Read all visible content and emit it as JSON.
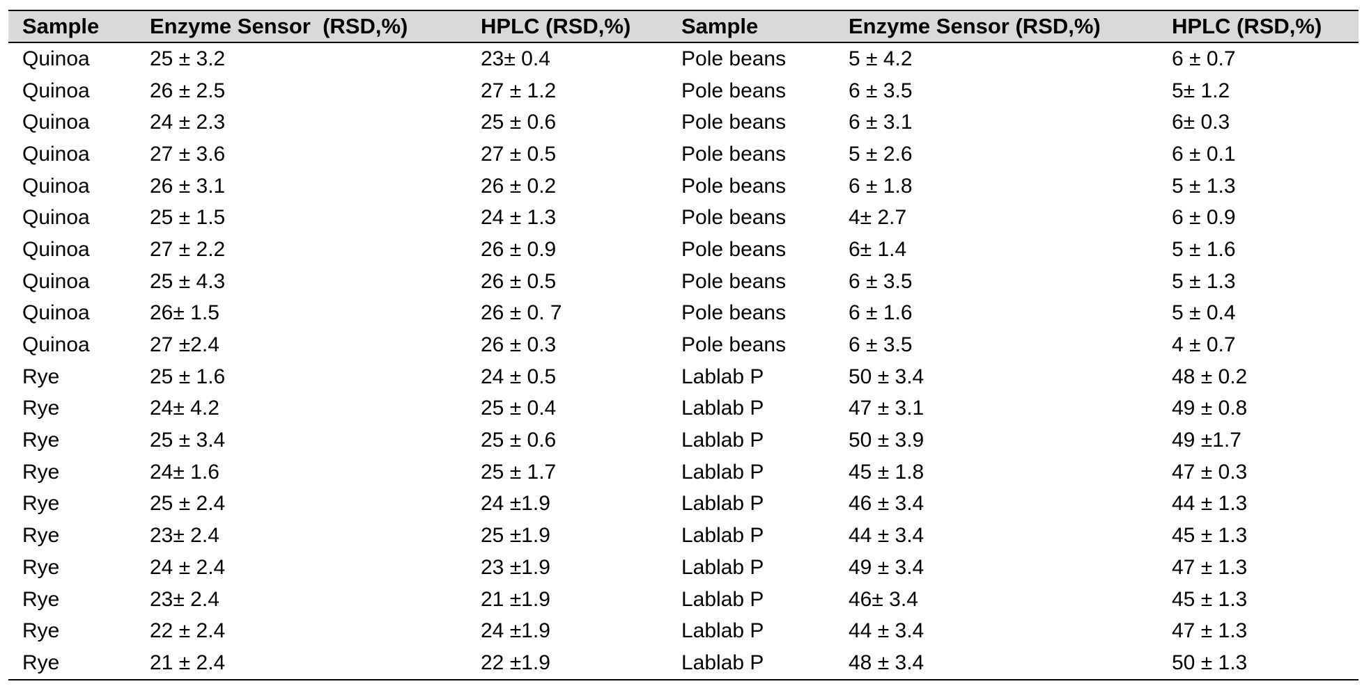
{
  "table": {
    "headers": [
      "Sample",
      "Enzyme Sensor  (RSD,%)",
      "HPLC (RSD,%)",
      "Sample",
      "Enzyme Sensor (RSD,%)",
      "HPLC (RSD,%)"
    ],
    "rows": [
      [
        "Quinoa",
        "25 ± 3.2",
        "23± 0.4",
        "Pole beans",
        "5 ± 4.2",
        "6 ± 0.7"
      ],
      [
        "Quinoa",
        "26 ± 2.5",
        "27 ± 1.2",
        "Pole beans",
        "6 ± 3.5",
        "5± 1.2"
      ],
      [
        "Quinoa",
        "24 ± 2.3",
        "25 ± 0.6",
        "Pole beans",
        "6 ± 3.1",
        "6± 0.3"
      ],
      [
        "Quinoa",
        "27 ± 3.6",
        "27 ± 0.5",
        "Pole beans",
        "5 ± 2.6",
        "6 ± 0.1"
      ],
      [
        "Quinoa",
        "26 ± 3.1",
        "26 ± 0.2",
        "Pole beans",
        "6 ± 1.8",
        "5 ± 1.3"
      ],
      [
        "Quinoa",
        "25 ± 1.5",
        "24 ± 1.3",
        "Pole beans",
        "4± 2.7",
        "6 ± 0.9"
      ],
      [
        "Quinoa",
        "27 ± 2.2",
        "26 ± 0.9",
        "Pole beans",
        "6± 1.4",
        "5 ± 1.6"
      ],
      [
        "Quinoa",
        "25 ± 4.3",
        "26 ± 0.5",
        "Pole beans",
        "6 ± 3.5",
        "5 ± 1.3"
      ],
      [
        "Quinoa",
        "26± 1.5",
        "26 ± 0. 7",
        "Pole beans",
        "6 ± 1.6",
        "5 ± 0.4"
      ],
      [
        "Quinoa",
        "27 ±2.4",
        "26 ± 0.3",
        "Pole beans",
        "6 ± 3.5",
        "4 ± 0.7"
      ],
      [
        "Rye",
        "25 ± 1.6",
        "24 ± 0.5",
        "Lablab P",
        "50 ± 3.4",
        "48 ± 0.2"
      ],
      [
        "Rye",
        "24± 4.2",
        "25 ± 0.4",
        "Lablab P",
        "47 ± 3.1",
        "49 ± 0.8"
      ],
      [
        "Rye",
        "25 ± 3.4",
        "25 ± 0.6",
        "Lablab P",
        "50 ± 3.9",
        "49 ±1.7"
      ],
      [
        "Rye",
        "24± 1.6",
        "25 ± 1.7",
        "Lablab P",
        "45 ± 1.8",
        "47 ± 0.3"
      ],
      [
        "Rye",
        "25 ± 2.4",
        "24 ±1.9",
        "Lablab P",
        "46 ± 3.4",
        "44 ± 1.3"
      ],
      [
        "Rye",
        "23± 2.4",
        "25 ±1.9",
        "Lablab P",
        "44 ± 3.4",
        "45 ± 1.3"
      ],
      [
        "Rye",
        "24 ± 2.4",
        "23 ±1.9",
        "Lablab P",
        "49 ± 3.4",
        "47 ± 1.3"
      ],
      [
        "Rye",
        "23± 2.4",
        "21 ±1.9",
        "Lablab P",
        "46± 3.4",
        "45 ± 1.3"
      ],
      [
        "Rye",
        "22 ± 2.4",
        "24 ±1.9",
        "Lablab P",
        "44 ± 3.4",
        "47 ± 1.3"
      ],
      [
        "Rye",
        "21 ± 2.4",
        "22 ±1.9",
        "Lablab P",
        "48 ± 3.4",
        "50 ± 1.3"
      ]
    ]
  }
}
